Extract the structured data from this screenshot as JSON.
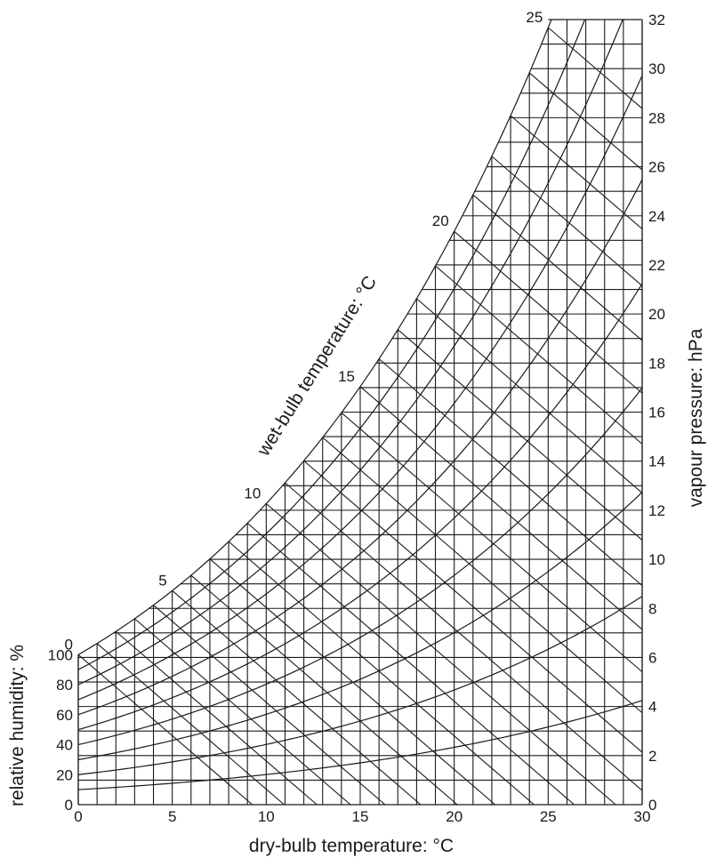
{
  "chart_data": {
    "type": "line",
    "title": "",
    "xlabel": "dry-bulb temperature: °C",
    "ylabel_left": "relative humidity: %",
    "ylabel_right": "vapour pressure: hPa",
    "curve_label": "wet-bulb temperature: °C",
    "xlim": [
      0,
      30
    ],
    "ylim": [
      0,
      32
    ],
    "x_ticks": [
      "0",
      "5",
      "10",
      "15",
      "20",
      "25",
      "30"
    ],
    "y_right_ticks": [
      "0",
      "2",
      "4",
      "6",
      "8",
      "10",
      "12",
      "14",
      "16",
      "18",
      "20",
      "22",
      "24",
      "26",
      "28",
      "30",
      "32"
    ],
    "rh_ticks": [
      "0",
      "20",
      "40",
      "60",
      "80",
      "100"
    ],
    "wet_bulb_labels": [
      "0",
      "5",
      "10",
      "15",
      "20",
      "25"
    ],
    "vertical_grid_step": 1,
    "horizontal_grid_step": 1,
    "relative_humidity_curves": [
      10,
      20,
      30,
      40,
      50,
      60,
      70,
      80,
      90,
      100
    ],
    "wet_bulb_lines": [
      0,
      1,
      2,
      3,
      4,
      5,
      6,
      7,
      8,
      9,
      10,
      11,
      12,
      13,
      14,
      15,
      16,
      17,
      18,
      19,
      20,
      21,
      22,
      23,
      24,
      25
    ],
    "psychrometer_coefficient_hPa_per_K": 0.66,
    "grid": true,
    "line_color": "#1a1a1a",
    "background": "#ffffff"
  }
}
